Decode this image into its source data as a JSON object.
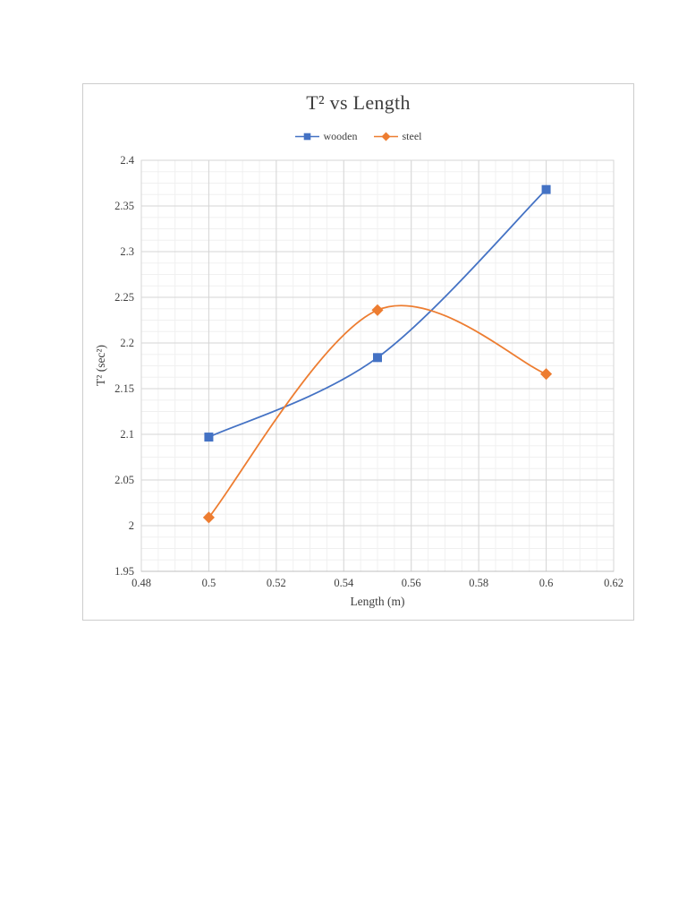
{
  "page": {
    "background": "#ffffff"
  },
  "chart_data": {
    "type": "line",
    "title": "T² vs Length",
    "xlabel": "Length (m)",
    "ylabel": "T² (sec²)",
    "smooth": true,
    "grid": true,
    "legend_position": "top",
    "x": [
      0.5,
      0.55,
      0.6
    ],
    "series": [
      {
        "name": "wooden",
        "color": "#4472C4",
        "marker": "square",
        "values": [
          2.097,
          2.184,
          2.368
        ]
      },
      {
        "name": "steel",
        "color": "#ED7D31",
        "marker": "diamond",
        "values": [
          2.009,
          2.236,
          2.166
        ]
      }
    ],
    "xlim": [
      0.48,
      0.62
    ],
    "ylim": [
      1.95,
      2.4
    ],
    "x_ticks": [
      "0.48",
      "0.5",
      "0.52",
      "0.54",
      "0.56",
      "0.58",
      "0.6",
      "0.62"
    ],
    "y_ticks": [
      "1.95",
      "2",
      "2.05",
      "2.1",
      "2.15",
      "2.2",
      "2.25",
      "2.3",
      "2.35",
      "2.4"
    ],
    "x_minor_step": 0.005,
    "y_minor_step": 0.0125,
    "colors": {
      "major_grid": "#d6d6d6",
      "minor_grid": "#f0f0f0",
      "axis_line": "#bfbfbf",
      "plot_border": "#d6d6d6",
      "text": "#404040"
    }
  }
}
